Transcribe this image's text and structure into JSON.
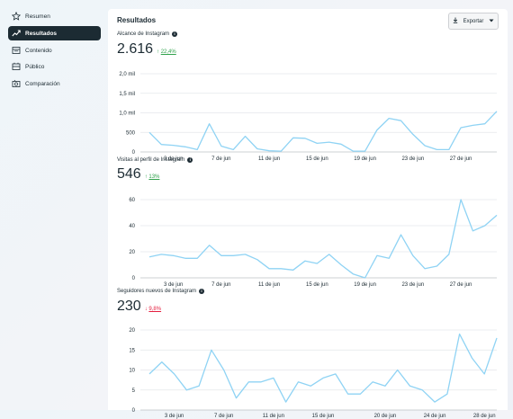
{
  "sidebar": {
    "items": [
      {
        "label": "Resumen",
        "icon": "star-icon",
        "active": false
      },
      {
        "label": "Resultados",
        "icon": "trend-icon",
        "active": true
      },
      {
        "label": "Contenido",
        "icon": "content-icon",
        "active": false
      },
      {
        "label": "Público",
        "icon": "audience-icon",
        "active": false
      },
      {
        "label": "Comparación",
        "icon": "compare-icon",
        "active": false
      }
    ]
  },
  "header": {
    "title": "Resultados",
    "export_label": "Exportar"
  },
  "colors": {
    "line": "#8fd3f4",
    "grid": "#e4e6eb",
    "up": "#31a24c",
    "down": "#e41e3f"
  },
  "sections": [
    {
      "label": "Alcance de Instagram",
      "value": "2.616",
      "delta": "22,4%",
      "direction": "up"
    },
    {
      "label": "Visitas al perfil de Instagram",
      "value": "546",
      "delta": "13%",
      "direction": "up"
    },
    {
      "label": "Seguidores nuevos de Instagram",
      "value": "230",
      "delta": "9,8%",
      "direction": "down"
    }
  ],
  "chart_data": [
    {
      "type": "line",
      "title": "Alcance de Instagram",
      "ylim": [
        0,
        2000
      ],
      "ytick_values": [
        0,
        500,
        1000,
        1500,
        2000
      ],
      "ytick_labels": [
        "0",
        "500",
        "1,0 mil",
        "1,5 mil",
        "2,0 mil"
      ],
      "x_tick_labels": [
        "3 de jun",
        "7 de jun",
        "11 de jun",
        "15 de jun",
        "19 de jun",
        "23 de jun",
        "27 de jun"
      ],
      "x_tick_index": [
        2,
        6,
        10,
        14,
        18,
        22,
        26
      ],
      "values": [
        500,
        190,
        170,
        130,
        60,
        720,
        150,
        60,
        400,
        80,
        30,
        20,
        360,
        350,
        220,
        250,
        200,
        20,
        20,
        560,
        860,
        800,
        450,
        160,
        60,
        60,
        620,
        680,
        720,
        1040
      ],
      "grid": true
    },
    {
      "type": "line",
      "title": "Visitas al perfil de Instagram",
      "ylim": [
        0,
        60
      ],
      "ytick_values": [
        0,
        20,
        40,
        60
      ],
      "ytick_labels": [
        "0",
        "20",
        "40",
        "60"
      ],
      "x_tick_labels": [
        "3 de jun",
        "7 de jun",
        "11 de jun",
        "15 de jun",
        "19 de jun",
        "23 de jun",
        "27 de jun"
      ],
      "x_tick_index": [
        2,
        6,
        10,
        14,
        18,
        22,
        26
      ],
      "values": [
        16,
        18,
        17,
        15,
        15,
        25,
        17,
        17,
        18,
        14,
        7,
        7,
        6,
        13,
        11,
        18,
        10,
        3,
        0,
        17,
        15,
        33,
        17,
        7,
        9,
        18,
        60,
        36,
        40,
        48
      ],
      "grid": true
    },
    {
      "type": "line",
      "title": "Seguidores nuevos de Instagram",
      "ylim": [
        0,
        20
      ],
      "ytick_values": [
        0,
        5,
        10,
        15,
        20
      ],
      "ytick_labels": [
        "0",
        "5",
        "10",
        "15",
        "20"
      ],
      "x_tick_labels": [
        "3 de jun",
        "7 de jun",
        "11 de jun",
        "15 de jun",
        "20 de jun",
        "24 de jun",
        "28 de jun"
      ],
      "x_tick_index": [
        2,
        6,
        10,
        14,
        19,
        23,
        27
      ],
      "values": [
        9,
        12,
        9,
        5,
        6,
        15,
        10,
        3,
        7,
        7,
        8,
        2,
        7,
        6,
        8,
        9,
        4,
        4,
        7,
        6,
        10,
        6,
        5,
        2,
        4,
        19,
        13,
        9,
        18
      ],
      "grid": true
    }
  ]
}
